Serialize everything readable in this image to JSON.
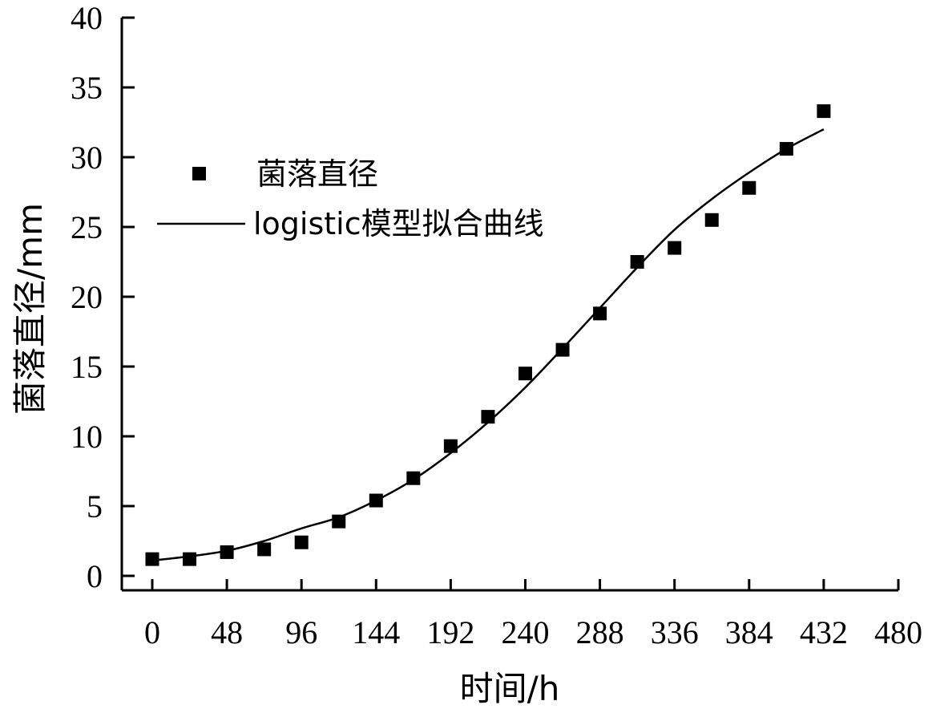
{
  "chart_data": {
    "type": "scatter",
    "xlabel": "时间/h",
    "ylabel": "菌落直径/mm",
    "xlim": [
      0,
      480
    ],
    "ylim": [
      0,
      40
    ],
    "xticks": [
      "0",
      "48",
      "96",
      "144",
      "192",
      "240",
      "288",
      "336",
      "384",
      "432",
      "480"
    ],
    "yticks": [
      "0",
      "5",
      "10",
      "15",
      "20",
      "25",
      "30",
      "35",
      "40"
    ],
    "grid": false,
    "legend_position": "upper-left",
    "series": [
      {
        "name": "菌落直径",
        "kind": "scatter",
        "marker": "square",
        "x": [
          0,
          24,
          48,
          72,
          96,
          120,
          144,
          168,
          192,
          216,
          240,
          264,
          288,
          312,
          336,
          360,
          384,
          408,
          432
        ],
        "y": [
          1.2,
          1.2,
          1.7,
          1.9,
          2.4,
          3.9,
          5.4,
          7.0,
          9.3,
          11.4,
          14.5,
          16.2,
          18.8,
          22.5,
          23.5,
          25.5,
          27.8,
          30.6,
          33.3
        ]
      },
      {
        "name": "logistic模型拟合曲线",
        "kind": "line",
        "x": [
          0,
          24,
          48,
          72,
          96,
          120,
          144,
          168,
          192,
          216,
          240,
          264,
          288,
          312,
          336,
          360,
          384,
          408,
          432
        ],
        "y": [
          1.1,
          1.4,
          1.8,
          2.5,
          3.4,
          4.2,
          5.4,
          6.9,
          8.8,
          11.0,
          13.5,
          16.3,
          19.2,
          22.1,
          24.8,
          27.0,
          28.9,
          30.6,
          32.0
        ]
      }
    ]
  }
}
